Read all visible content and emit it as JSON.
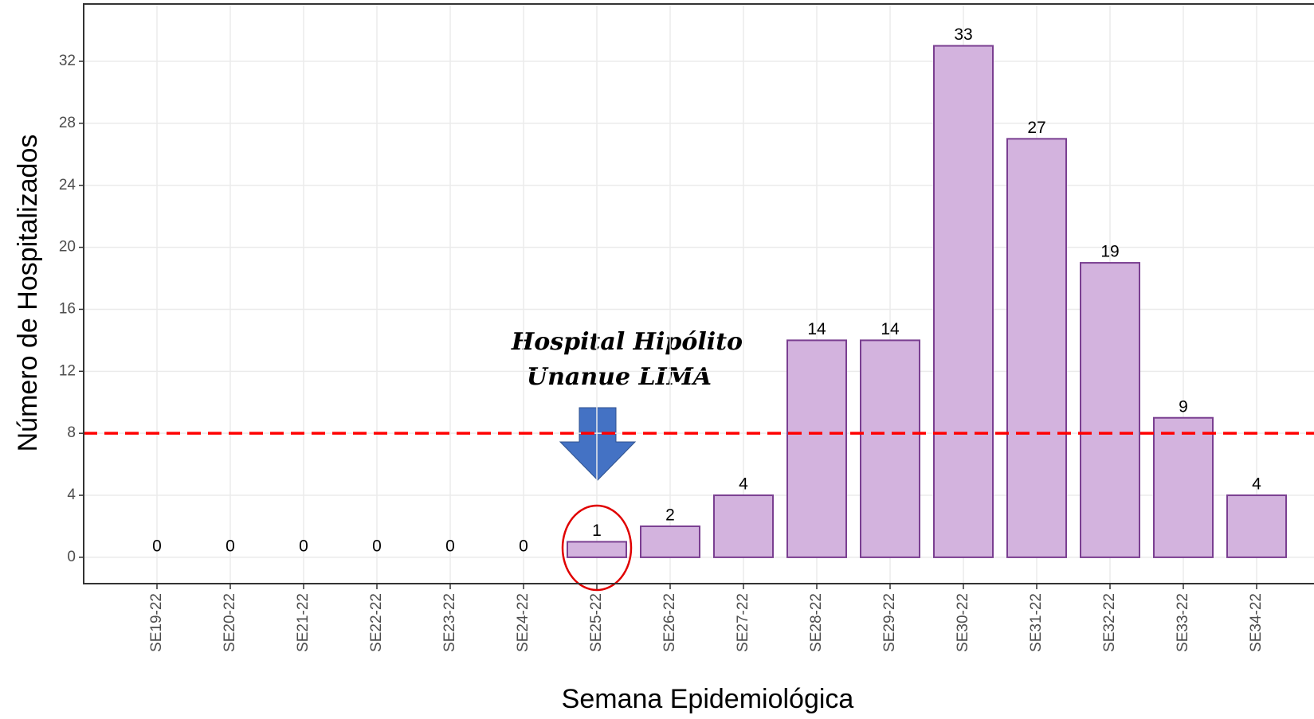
{
  "chart_data": {
    "type": "bar",
    "x_label": "Semana Epidemiológica",
    "y_label": "Número de Hospitalizados",
    "categories": [
      "SE19-22",
      "SE20-22",
      "SE21-22",
      "SE22-22",
      "SE23-22",
      "SE24-22",
      "SE25-22",
      "SE26-22",
      "SE27-22",
      "SE28-22",
      "SE29-22",
      "SE30-22",
      "SE31-22",
      "SE32-22",
      "SE33-22",
      "SE34-22"
    ],
    "values": [
      0,
      0,
      0,
      0,
      0,
      0,
      1,
      2,
      4,
      14,
      14,
      33,
      27,
      19,
      9,
      4
    ],
    "color": "#d3b3de",
    "edge_color": "#7a3f91",
    "ylim": [
      -1.7,
      35.7
    ],
    "yticks": [
      0,
      4,
      8,
      12,
      16,
      20,
      24,
      28,
      32
    ],
    "grid": true,
    "threshold": 8,
    "threshold_color": "#ff0000",
    "annotation": [
      "Hospital Hipólito",
      "Unanue LIMA"
    ],
    "highlight_index": 6
  }
}
